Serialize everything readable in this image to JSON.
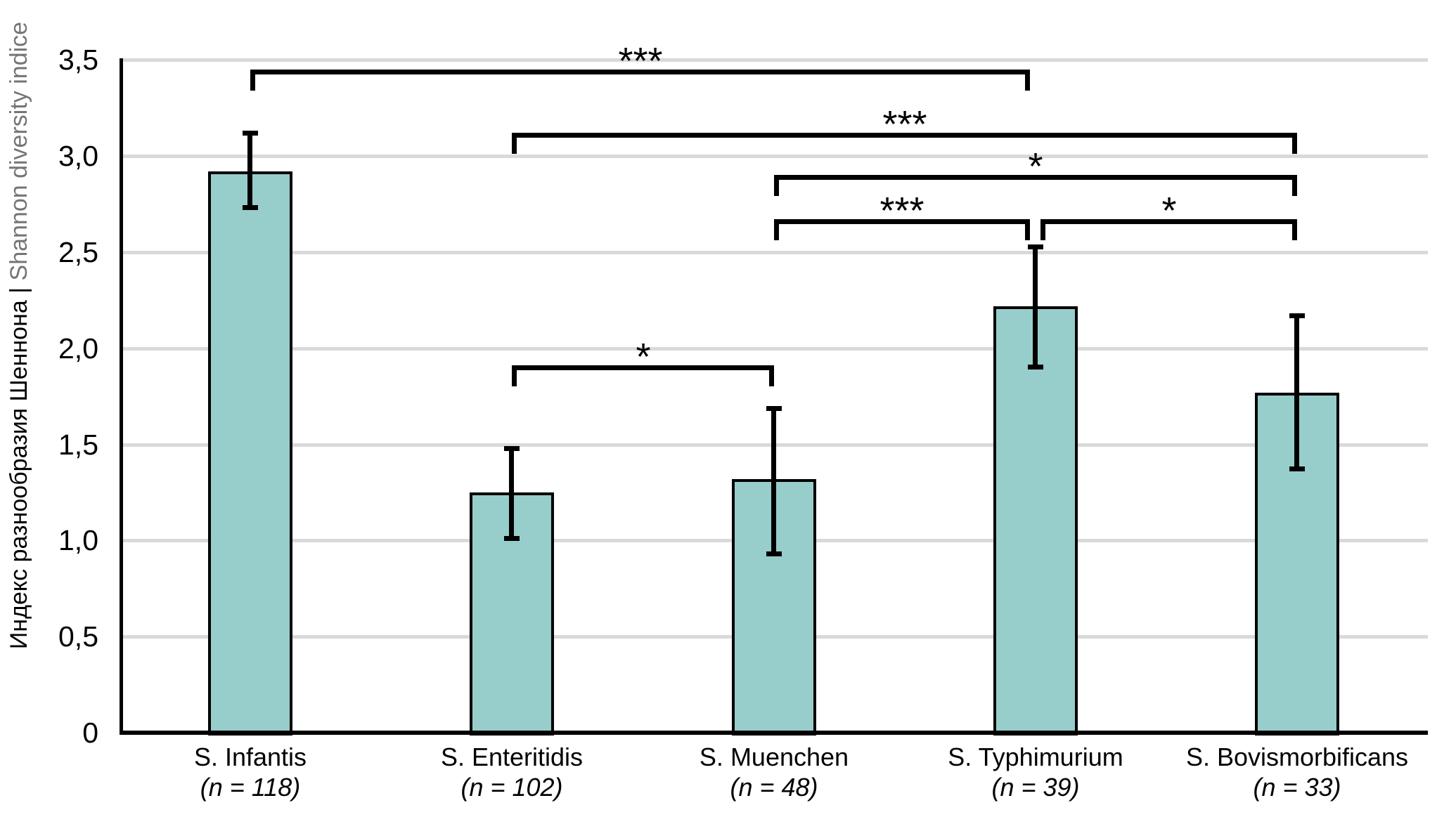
{
  "chart_data": {
    "type": "bar",
    "y_axis": {
      "title_primary": "Индекс разнообразия Шеннона",
      "title_separator": " | ",
      "title_secondary": "Shannon diversity indice",
      "ylim": [
        0,
        3.5
      ],
      "ticks": [
        {
          "value": 0,
          "label": "0"
        },
        {
          "value": 0.5,
          "label": "0,5"
        },
        {
          "value": 1,
          "label": "1,0"
        },
        {
          "value": 1.5,
          "label": "1,5"
        },
        {
          "value": 2,
          "label": "2,0"
        },
        {
          "value": 2.5,
          "label": "2,5"
        },
        {
          "value": 3,
          "label": "3,0"
        },
        {
          "value": 3.5,
          "label": "3,5"
        }
      ],
      "gridlines": [
        0.5,
        1,
        1.5,
        2,
        2.5,
        3,
        3.5
      ],
      "grid": true
    },
    "categories": [
      {
        "name": "S. Infantis",
        "n_label": "(n = 118)",
        "value": 2.92,
        "error_upper": 3.12,
        "error_lower": 2.73
      },
      {
        "name": "S. Enteritidis",
        "n_label": "(n = 102)",
        "value": 1.25,
        "error_upper": 1.48,
        "error_lower": 1.01
      },
      {
        "name": "S. Muenchen",
        "n_label": "(n = 48)",
        "value": 1.32,
        "error_upper": 1.69,
        "error_lower": 0.93
      },
      {
        "name": "S. Typhimurium",
        "n_label": "(n = 39)",
        "value": 2.22,
        "error_upper": 2.53,
        "error_lower": 1.9
      },
      {
        "name": "S. Bovismorbificans",
        "n_label": "(n = 33)",
        "value": 1.77,
        "error_upper": 2.17,
        "error_lower": 1.37
      }
    ],
    "significance_brackets": [
      {
        "from": 0,
        "to": 3,
        "label": "***",
        "level": 3.44,
        "dx2": -8
      },
      {
        "from": 1,
        "to": 4,
        "label": "***",
        "level": 3.11
      },
      {
        "from": 2,
        "to": 4,
        "label": "*",
        "level": 2.89
      },
      {
        "from": 2,
        "to": 3,
        "label": "***",
        "level": 2.66,
        "dx2": -8
      },
      {
        "from": 3,
        "to": 4,
        "label": "*",
        "level": 2.66,
        "dx1": 7
      },
      {
        "from": 1,
        "to": 2,
        "label": "*",
        "level": 1.9
      }
    ],
    "colors": {
      "bar_fill": "#97cecb",
      "bar_border": "#000000",
      "gridline": "#d9d9d9",
      "axis": "#000000",
      "error_bar": "#000000",
      "title_secondary_color": "#757575"
    },
    "legend": null
  }
}
